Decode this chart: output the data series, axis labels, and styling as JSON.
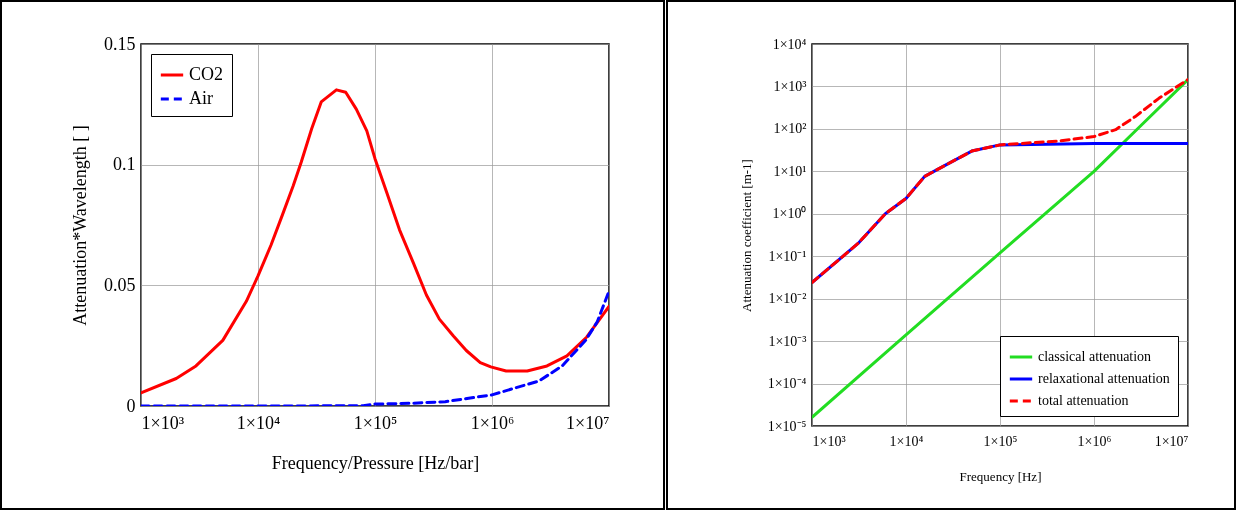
{
  "chart_data": [
    {
      "type": "line",
      "xlabel": "Frequency/Pressure [Hz/bar]",
      "ylabel": "Attenuation*Wavelength [ ]",
      "log": "x",
      "grid": true,
      "legend": "top left",
      "xlim": [
        1000,
        10000000
      ],
      "xticks": [
        {
          "value": 1000,
          "label": "1×10³"
        },
        {
          "value": 10000,
          "label": "1×10⁴"
        },
        {
          "value": 100000,
          "label": "1×10⁵"
        },
        {
          "value": 1000000,
          "label": "1×10⁶"
        },
        {
          "value": 10000000,
          "label": "1×10⁷"
        }
      ],
      "ylim": [
        0,
        0.15
      ],
      "yticks": [
        0,
        0.05,
        0.1,
        0.15
      ],
      "series": [
        {
          "name": "CO2",
          "color": "#ff0000",
          "line_style": "solid",
          "x": [
            1000,
            2000,
            2950,
            5000,
            7950,
            10000,
            12900,
            16200,
            20000,
            23400,
            28800,
            34700,
            46800,
            56200,
            69200,
            85100,
            100000,
            126000,
            162000,
            214000,
            275000,
            355000,
            468000,
            603000,
            794000,
            977000,
            1320000,
            2000000,
            2950000,
            4370000,
            6460000,
            10000000
          ],
          "values": [
            0.0054,
            0.0114,
            0.0166,
            0.0272,
            0.0434,
            0.0539,
            0.0666,
            0.0793,
            0.0913,
            0.101,
            0.115,
            0.126,
            0.131,
            0.13,
            0.123,
            0.114,
            0.1025,
            0.0885,
            0.073,
            0.059,
            0.046,
            0.036,
            0.029,
            0.023,
            0.018,
            0.0162,
            0.0145,
            0.0145,
            0.0166,
            0.0208,
            0.0286,
            0.0413
          ]
        },
        {
          "name": "Air",
          "color": "#0000ff",
          "line_style": "dashed",
          "x": [
            1000,
            10000,
            79400,
            100000,
            200000,
            398000,
            631000,
            1000000,
            1580000,
            2510000,
            3980000,
            6310000,
            7940000,
            10000000
          ],
          "values": [
            0,
            0,
            0.0001,
            0.0008,
            0.0011,
            0.0018,
            0.0032,
            0.0046,
            0.0075,
            0.0103,
            0.0166,
            0.0272,
            0.0349,
            0.0476
          ]
        }
      ]
    },
    {
      "type": "line",
      "xlabel": "Frequency [Hz]",
      "ylabel": "Attenuation coefficient [m-1]",
      "log": "xy",
      "grid": true,
      "legend": "bottom right",
      "xlim": [
        1000,
        10000000
      ],
      "xticks": [
        {
          "value": 1000,
          "label": "1×10³"
        },
        {
          "value": 10000,
          "label": "1×10⁴"
        },
        {
          "value": 100000,
          "label": "1×10⁵"
        },
        {
          "value": 1000000,
          "label": "1×10⁶"
        },
        {
          "value": 10000000,
          "label": "1×10⁷"
        }
      ],
      "ylim": [
        1e-05,
        10000
      ],
      "yticks": [
        {
          "value": 1e-05,
          "label": "1×10⁻⁵"
        },
        {
          "value": 0.0001,
          "label": "1×10⁻⁴"
        },
        {
          "value": 0.001,
          "label": "1×10⁻³"
        },
        {
          "value": 0.01,
          "label": "1×10⁻²"
        },
        {
          "value": 0.1,
          "label": "1×10⁻¹"
        },
        {
          "value": 1,
          "label": "1×10⁰"
        },
        {
          "value": 10,
          "label": "1×10¹"
        },
        {
          "value": 100,
          "label": "1×10²"
        },
        {
          "value": 1000,
          "label": "1×10³"
        },
        {
          "value": 10000,
          "label": "1×10⁴"
        }
      ],
      "series": [
        {
          "name": "classical attenuation",
          "color": "#22dd22",
          "line_style": "solid",
          "x": [
            1000,
            10000,
            100000,
            1000000,
            3160000,
            10000000
          ],
          "values": [
            1.6e-05,
            0.0014,
            0.12,
            10,
            120,
            1450
          ]
        },
        {
          "name": "relaxational attenuation",
          "color": "#0000ff",
          "line_style": "solid",
          "x": [
            1000,
            3090,
            6030,
            10000,
            15800,
            26300,
            50100,
            100000,
            1000000,
            10000000
          ],
          "values": [
            0.024,
            0.2,
            1.0,
            2.3,
            7.6,
            14,
            30,
            42,
            45,
            45
          ]
        },
        {
          "name": "total attenuation",
          "color": "#ff0000",
          "line_style": "dashed",
          "x": [
            1000,
            3090,
            6030,
            10000,
            15800,
            26300,
            50100,
            100000,
            427000,
            1000000,
            1700000,
            2750000,
            4900000,
            10000000
          ],
          "values": [
            0.024,
            0.2,
            1.0,
            2.3,
            7.6,
            14,
            30,
            42,
            52,
            66,
            96,
            195,
            525,
            1450
          ]
        }
      ]
    }
  ]
}
